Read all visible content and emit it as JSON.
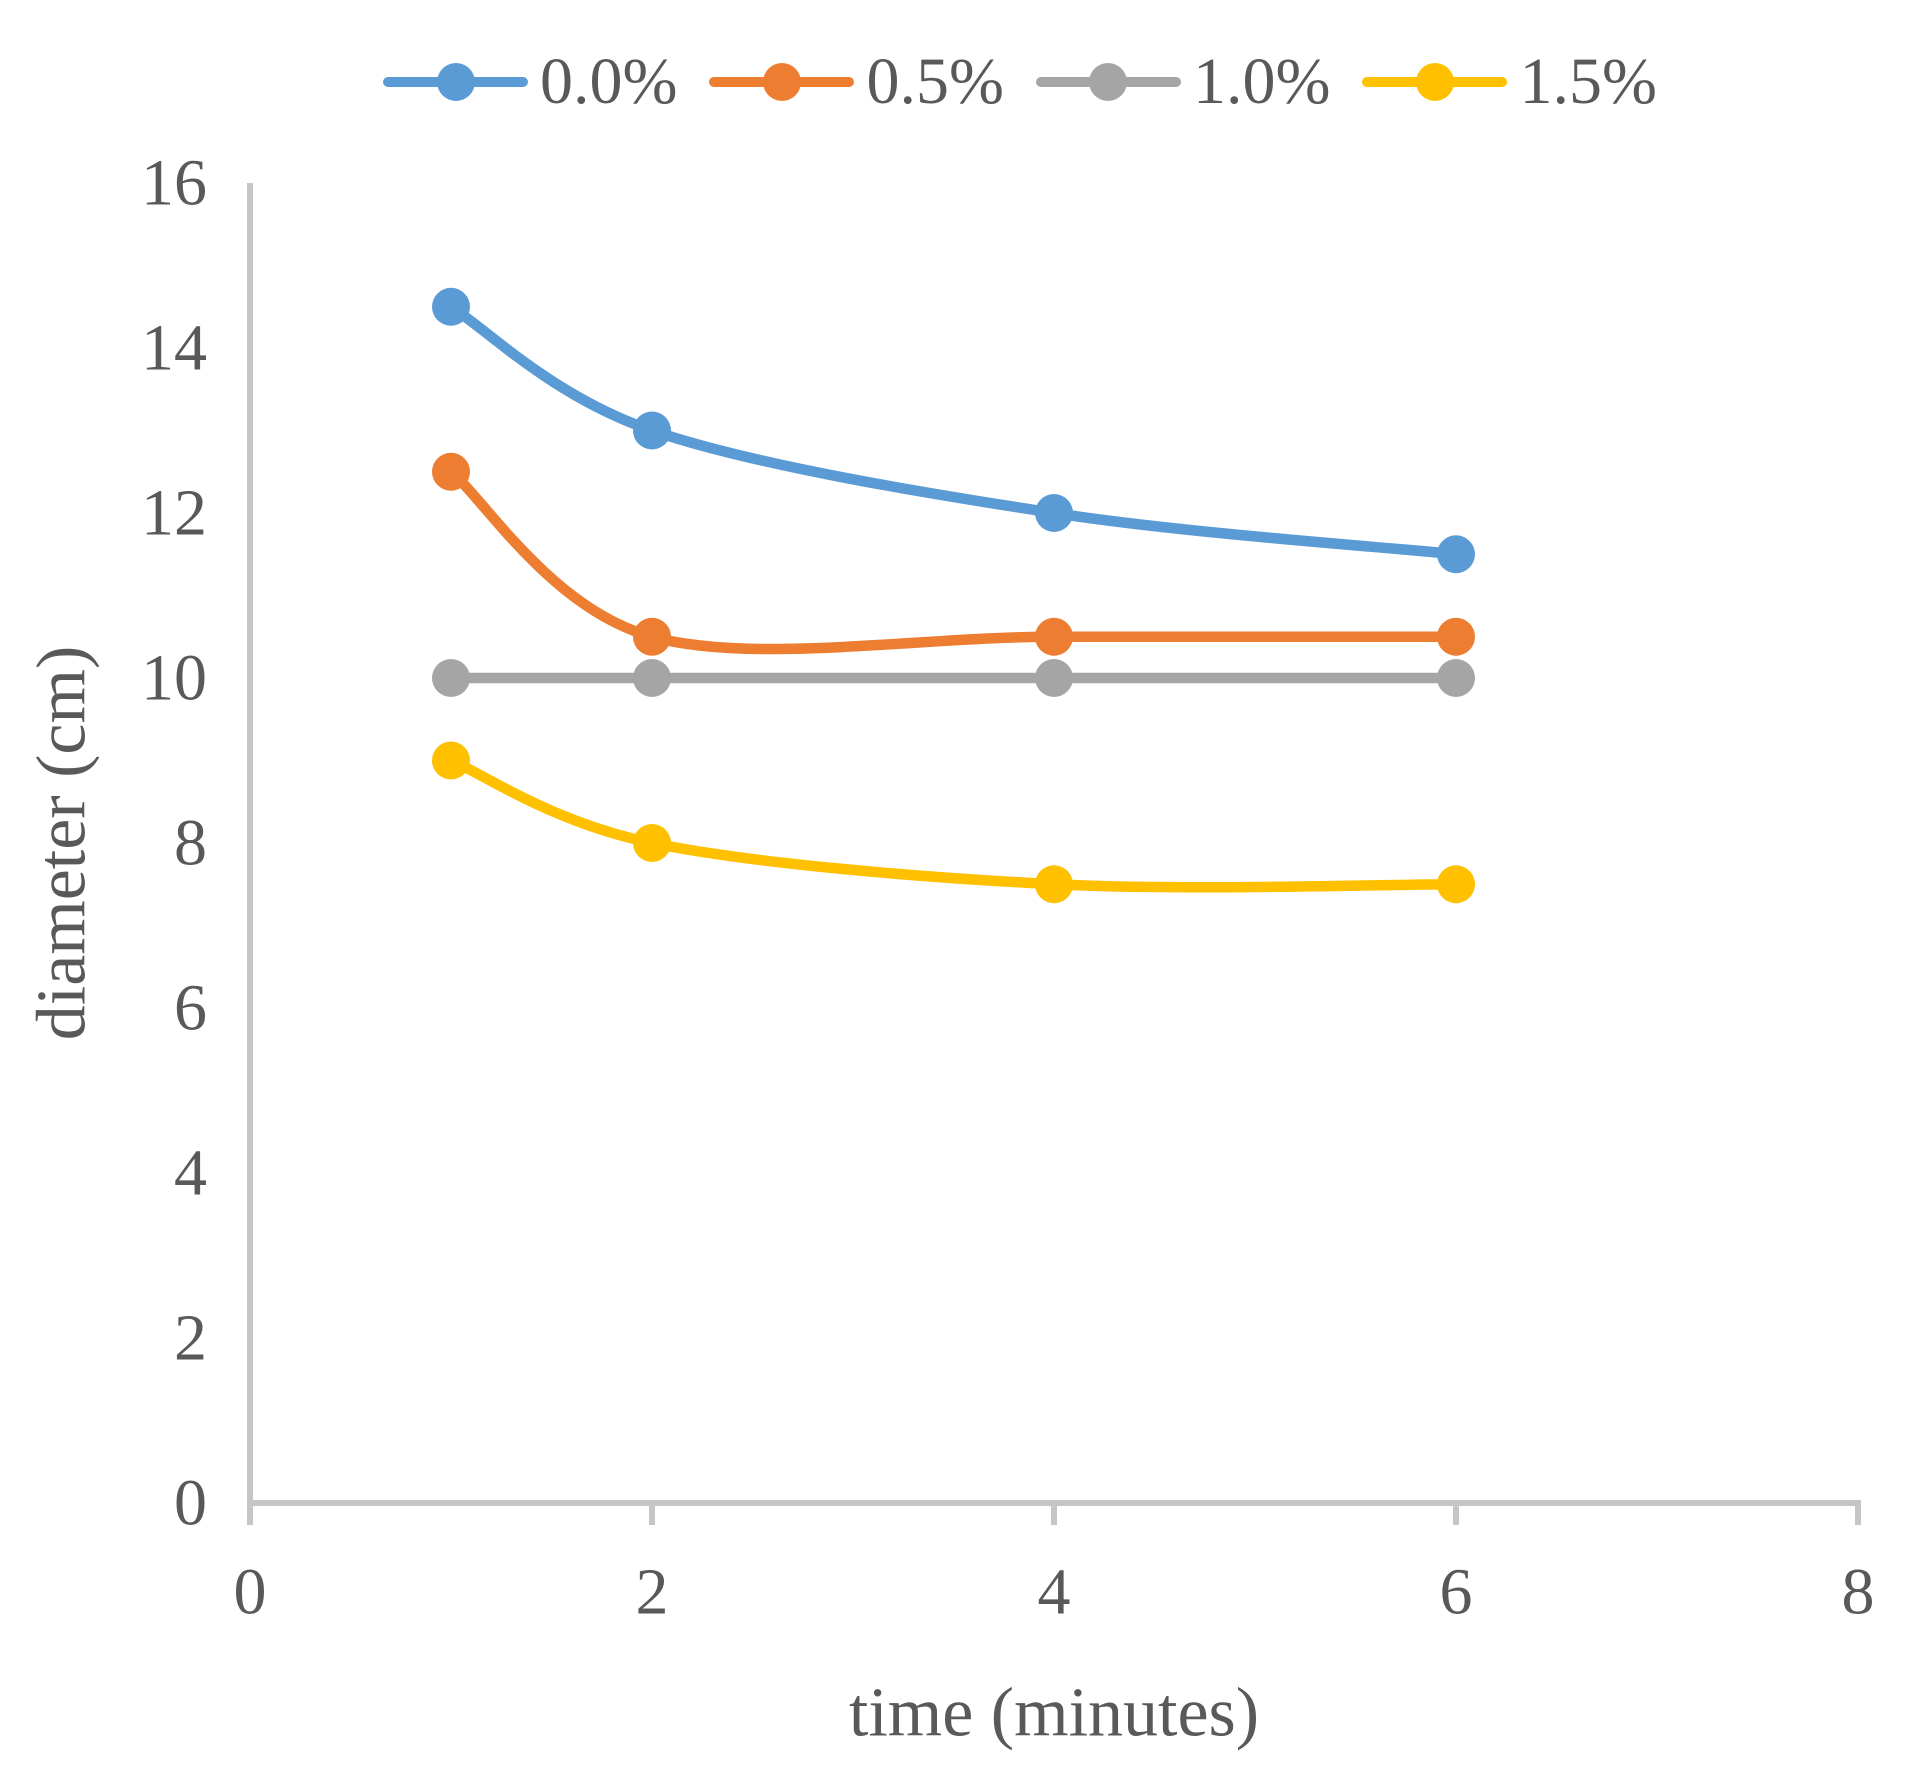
{
  "chart_data": {
    "type": "line",
    "title": "",
    "xlabel": "time (minutes)",
    "ylabel": "diameter (cm)",
    "x": [
      1,
      2,
      4,
      6
    ],
    "series": [
      {
        "name": "0.0%",
        "color": "#5B9BD5",
        "values": [
          14.5,
          13.0,
          12.0,
          11.5
        ]
      },
      {
        "name": "0.5%",
        "color": "#ED7D31",
        "values": [
          12.5,
          10.5,
          10.5,
          10.5
        ]
      },
      {
        "name": "1.0%",
        "color": "#A5A5A5",
        "values": [
          10.0,
          10.0,
          10.0,
          10.0
        ]
      },
      {
        "name": "1.5%",
        "color": "#FFC000",
        "values": [
          9.0,
          8.0,
          7.5,
          7.5
        ]
      }
    ],
    "x_axis": {
      "min": 0,
      "max": 8,
      "ticks": [
        0,
        2,
        4,
        6,
        8
      ]
    },
    "y_axis": {
      "min": 0,
      "max": 16,
      "ticks": [
        0,
        2,
        4,
        6,
        8,
        10,
        12,
        14,
        16
      ]
    },
    "legend_position": "top",
    "grid": false,
    "line_style": "smooth",
    "marker_style": "circle",
    "axis_color": "#C6C6C6",
    "text_color": "#595959"
  }
}
